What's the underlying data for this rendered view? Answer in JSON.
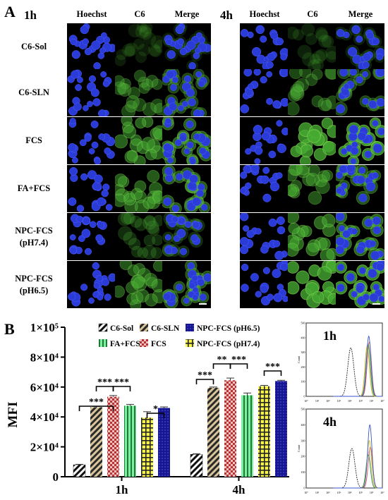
{
  "panel_a": {
    "letter": "A",
    "times": [
      "1h",
      "4h"
    ],
    "column_headers": [
      "Hoechst",
      "C6",
      "Merge"
    ],
    "row_labels": [
      [
        "C6-Sol"
      ],
      [
        "C6-SLN"
      ],
      [
        "FCS"
      ],
      [
        "FA+FCS"
      ],
      [
        "NPC-FCS",
        "(pH7.4)"
      ],
      [
        "NPC-FCS",
        "(pH6.5)"
      ]
    ],
    "green_intensity_1h": [
      0.02,
      0.35,
      0.55,
      0.5,
      0.15,
      0.45
    ],
    "green_intensity_4h": [
      0.05,
      0.35,
      0.85,
      0.45,
      0.6,
      0.85
    ],
    "colors": {
      "nucleus": "#2b3bd8",
      "cytoplasm": "#3f9a2c",
      "background": "#000000"
    }
  },
  "panel_b": {
    "letter": "B"
  },
  "chart_data": [
    {
      "type": "bar",
      "ylabel": "MFI",
      "ylim": [
        0,
        100000
      ],
      "y_ticks": [
        0,
        20000,
        40000,
        60000,
        80000,
        100000
      ],
      "y_tick_labels": [
        "0",
        "2×10⁴",
        "4×10⁴",
        "6×10⁴",
        "8×10⁴",
        "1×10⁵"
      ],
      "categories": [
        "1h",
        "4h"
      ],
      "series": [
        {
          "name": "C6-Sol",
          "values": [
            8000,
            15000
          ],
          "errors": [
            300,
            400
          ],
          "color": "#ffffff",
          "pattern": "diag-black"
        },
        {
          "name": "C6-SLN",
          "values": [
            46500,
            59500
          ],
          "errors": [
            500,
            500
          ],
          "color": "#c9b27a",
          "pattern": "diag-tan"
        },
        {
          "name": "FCS",
          "values": [
            53500,
            64500
          ],
          "errors": [
            800,
            1500
          ],
          "color": "#e7a1a1",
          "pattern": "checker-red"
        },
        {
          "name": "FA+FCS",
          "values": [
            47500,
            54500
          ],
          "errors": [
            900,
            1500
          ],
          "color": "#6ee891",
          "pattern": "vstripe-green"
        },
        {
          "name": "NPC-FCS (pH7.4)",
          "values": [
            39500,
            60500
          ],
          "errors": [
            4000,
            600
          ],
          "color": "#f5f23a",
          "pattern": "grid-yellow"
        },
        {
          "name": "NPC-FCS (pH6.5)",
          "values": [
            46000,
            64000
          ],
          "errors": [
            700,
            500
          ],
          "color": "#1a1ab0",
          "pattern": "dots-blue"
        }
      ],
      "legend_order": [
        "C6-Sol",
        "C6-SLN",
        "NPC-FCS (pH6.5)",
        "FA+FCS",
        "FCS",
        "NPC-FCS (pH7.4)"
      ],
      "legend_position": "top",
      "significance": [
        {
          "group": 0,
          "from": 0,
          "to": 2,
          "label": "***"
        },
        {
          "group": 0,
          "from": 1,
          "to": 2,
          "label": "***"
        },
        {
          "group": 0,
          "from": 2,
          "to": 3,
          "label": "***"
        },
        {
          "group": 0,
          "from": 4,
          "to": 5,
          "label": "*"
        },
        {
          "group": 1,
          "from": 0,
          "to": 1,
          "label": "***"
        },
        {
          "group": 1,
          "from": 1,
          "to": 2,
          "label": "**"
        },
        {
          "group": 1,
          "from": 2,
          "to": 3,
          "label": "***"
        },
        {
          "group": 1,
          "from": 4,
          "to": 5,
          "label": "***"
        }
      ]
    },
    {
      "type": "line",
      "title": "1h",
      "ylabel": "Count",
      "x_log": true,
      "x_tick_labels": [
        "10⁰",
        "10¹",
        "10²",
        "10³",
        "10⁴",
        "10⁵",
        "10⁶",
        "10⁷"
      ],
      "y_tick_labels": [
        "0",
        "100",
        "200",
        "300",
        "400",
        "500"
      ],
      "ylim": [
        0,
        500
      ],
      "series": [
        {
          "name": "C6-Sol",
          "peak_log": 4.1,
          "peak": 330,
          "color": "#222222",
          "dashed": true
        },
        {
          "name": "C6-SLN",
          "peak_log": 5.65,
          "peak": 360,
          "color": "#c8c8c8",
          "dashed": false
        },
        {
          "name": "FCS",
          "peak_log": 5.8,
          "peak": 370,
          "color": "#d65a5a",
          "dashed": false
        },
        {
          "name": "FA+FCS",
          "peak_log": 5.7,
          "peak": 350,
          "color": "#3a9a3a",
          "dashed": false
        },
        {
          "name": "NPC-FCS (pH7.4)",
          "peak_log": 5.6,
          "peak": 340,
          "color": "#cdbf2a",
          "dashed": false
        },
        {
          "name": "NPC-FCS (pH6.5)",
          "peak_log": 5.75,
          "peak": 410,
          "color": "#3a56c8",
          "dashed": false
        }
      ]
    },
    {
      "type": "line",
      "title": "4h",
      "ylabel": "Count",
      "x_log": true,
      "x_tick_labels": [
        "10⁰",
        "10¹",
        "10²",
        "10³",
        "10⁴",
        "10⁵",
        "10⁶",
        "10⁷"
      ],
      "y_tick_labels": [
        "0",
        "100",
        "200",
        "300",
        "400",
        "500"
      ],
      "ylim": [
        0,
        500
      ],
      "series": [
        {
          "name": "C6-Sol",
          "peak_log": 4.2,
          "peak": 250,
          "color": "#222222",
          "dashed": true
        },
        {
          "name": "C6-SLN",
          "peak_log": 5.75,
          "peak": 230,
          "color": "#c8c8c8",
          "dashed": false
        },
        {
          "name": "FCS",
          "peak_log": 5.9,
          "peak": 260,
          "color": "#d65a5a",
          "dashed": false
        },
        {
          "name": "FA+FCS",
          "peak_log": 5.7,
          "peak": 210,
          "color": "#3a9a3a",
          "dashed": false
        },
        {
          "name": "NPC-FCS (pH7.4)",
          "peak_log": 5.8,
          "peak": 300,
          "color": "#cdbf2a",
          "dashed": false
        },
        {
          "name": "NPC-FCS (pH6.5)",
          "peak_log": 5.85,
          "peak": 400,
          "color": "#3a56c8",
          "dashed": false
        }
      ]
    }
  ]
}
